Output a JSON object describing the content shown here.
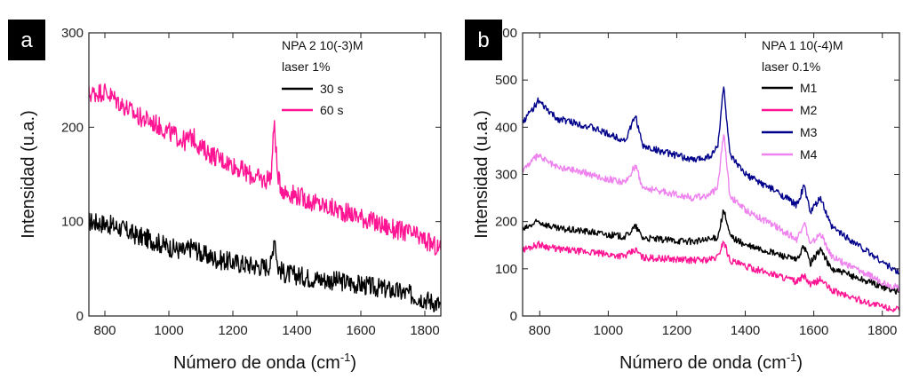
{
  "chart_data": [
    {
      "type": "line",
      "panel_label": "a",
      "xlabel_main": "Número de onda (cm",
      "xlabel_sup": "-1",
      "xlabel_end": ")",
      "ylabel": "Intensidad (u.a.)",
      "xlim": [
        750,
        1850
      ],
      "ylim": [
        0,
        300
      ],
      "xticks": [
        800,
        1000,
        1200,
        1400,
        1600,
        1800
      ],
      "yticks": [
        0,
        100,
        200,
        300
      ],
      "legend_position": "top-right",
      "legend_header": [
        "NPA 2 10(-3)M",
        "laser 1%"
      ],
      "series": [
        {
          "name": "30 s",
          "color": "#000000",
          "x": [
            750,
            800,
            850,
            900,
            950,
            1000,
            1050,
            1075,
            1100,
            1150,
            1200,
            1250,
            1300,
            1320,
            1330,
            1340,
            1360,
            1400,
            1450,
            1500,
            1550,
            1600,
            1650,
            1700,
            1750,
            1800,
            1850
          ],
          "y": [
            100,
            98,
            93,
            85,
            80,
            73,
            68,
            74,
            66,
            60,
            57,
            54,
            52,
            55,
            88,
            52,
            45,
            43,
            40,
            38,
            36,
            33,
            30,
            27,
            23,
            18,
            12
          ]
        },
        {
          "name": "60 s",
          "color": "#ff1493",
          "x": [
            750,
            800,
            850,
            900,
            950,
            1000,
            1050,
            1075,
            1100,
            1150,
            1200,
            1250,
            1300,
            1320,
            1330,
            1340,
            1360,
            1400,
            1450,
            1500,
            1550,
            1600,
            1650,
            1700,
            1750,
            1800,
            1850
          ],
          "y": [
            235,
            238,
            225,
            212,
            205,
            195,
            185,
            190,
            178,
            168,
            160,
            150,
            143,
            150,
            208,
            145,
            132,
            128,
            120,
            115,
            110,
            105,
            98,
            92,
            88,
            80,
            70
          ]
        }
      ]
    },
    {
      "type": "line",
      "panel_label": "b",
      "xlabel_main": "Número de onda (cm",
      "xlabel_sup": "-1",
      "xlabel_end": ")",
      "ylabel": "Intensidad (u.a.)",
      "xlim": [
        750,
        1850
      ],
      "ylim": [
        0,
        600
      ],
      "xticks": [
        800,
        1000,
        1200,
        1400,
        1600,
        1800
      ],
      "yticks": [
        0,
        100,
        200,
        300,
        400,
        500,
        600
      ],
      "legend_position": "top-right",
      "legend_header": [
        "NPA 1 10(-4)M",
        "laser 0.1%"
      ],
      "series": [
        {
          "name": "M1",
          "color": "#000000",
          "x": [
            750,
            795,
            850,
            900,
            950,
            1000,
            1050,
            1080,
            1100,
            1150,
            1200,
            1250,
            1300,
            1320,
            1337,
            1355,
            1400,
            1450,
            1500,
            1550,
            1572,
            1590,
            1620,
            1650,
            1700,
            1750,
            1800,
            1850
          ],
          "y": [
            182,
            200,
            185,
            182,
            178,
            172,
            168,
            190,
            166,
            162,
            160,
            158,
            162,
            168,
            225,
            170,
            150,
            140,
            130,
            118,
            148,
            112,
            142,
            100,
            88,
            75,
            62,
            50
          ]
        },
        {
          "name": "M2",
          "color": "#ff1493",
          "x": [
            750,
            795,
            850,
            900,
            950,
            1000,
            1050,
            1080,
            1100,
            1150,
            1200,
            1250,
            1300,
            1320,
            1337,
            1355,
            1400,
            1450,
            1500,
            1550,
            1572,
            1590,
            1620,
            1650,
            1700,
            1750,
            1800,
            1850
          ],
          "y": [
            140,
            152,
            142,
            138,
            135,
            130,
            127,
            140,
            124,
            122,
            120,
            118,
            120,
            125,
            160,
            118,
            105,
            95,
            85,
            72,
            85,
            65,
            78,
            55,
            42,
            30,
            20,
            12
          ]
        },
        {
          "name": "M3",
          "color": "#00008b",
          "x": [
            750,
            795,
            850,
            900,
            950,
            1000,
            1050,
            1080,
            1100,
            1150,
            1200,
            1250,
            1300,
            1320,
            1337,
            1355,
            1400,
            1450,
            1500,
            1550,
            1572,
            1590,
            1620,
            1650,
            1700,
            1750,
            1800,
            1850
          ],
          "y": [
            410,
            455,
            418,
            410,
            400,
            385,
            372,
            425,
            360,
            350,
            340,
            330,
            340,
            360,
            490,
            340,
            300,
            280,
            260,
            235,
            275,
            220,
            250,
            190,
            165,
            140,
            115,
            90
          ]
        },
        {
          "name": "M4",
          "color": "#ee82ee",
          "x": [
            750,
            795,
            850,
            900,
            950,
            1000,
            1050,
            1080,
            1100,
            1150,
            1200,
            1250,
            1300,
            1320,
            1337,
            1355,
            1400,
            1450,
            1500,
            1550,
            1572,
            1590,
            1620,
            1650,
            1700,
            1750,
            1800,
            1850
          ],
          "y": [
            310,
            340,
            315,
            310,
            300,
            290,
            282,
            320,
            272,
            265,
            258,
            250,
            258,
            275,
            390,
            255,
            225,
            205,
            185,
            162,
            200,
            150,
            175,
            128,
            108,
            90,
            72,
            58
          ]
        }
      ]
    }
  ]
}
